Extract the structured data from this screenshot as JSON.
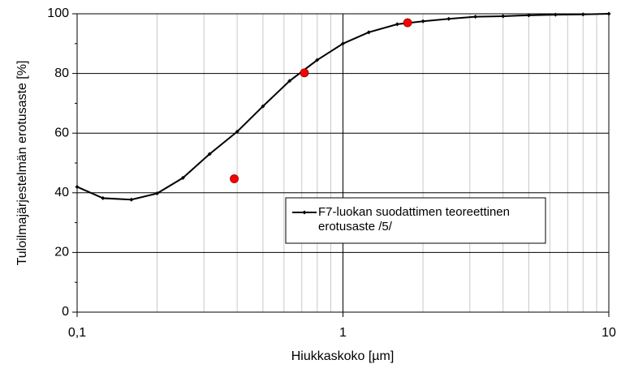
{
  "chart_data": {
    "type": "line",
    "x_label": "Hiukkaskoko [µm]",
    "y_label": "Tuloilmajärjestelmän erotusaste [%]",
    "xscale": "log",
    "xlim": [
      0.1,
      10
    ],
    "xticks": [
      {
        "value": 0.1,
        "label": "0,1"
      },
      1,
      10
    ],
    "xminorticks": [
      0.2,
      0.3,
      0.4,
      0.5,
      0.6,
      0.7,
      0.8,
      0.9,
      2,
      3,
      4,
      5,
      6,
      7,
      8,
      9
    ],
    "ylim": [
      0,
      100
    ],
    "yticks": [
      0,
      20,
      40,
      60,
      80,
      100
    ],
    "yminorticks": [
      10,
      30,
      50,
      70,
      90
    ],
    "grid": true,
    "legend": "center-right",
    "series": [
      {
        "name": "F7-luokan suodattimen teoreettinen erotusaste /5/",
        "color": "#000000",
        "marker": "diamond",
        "x": [
          0.1,
          0.125,
          0.16,
          0.2,
          0.25,
          0.315,
          0.4,
          0.5,
          0.63,
          0.8,
          1.0,
          1.25,
          1.6,
          2.0,
          2.5,
          3.15,
          4,
          5,
          6.3,
          8,
          10
        ],
        "values": [
          42,
          38.2,
          37.7,
          39.8,
          45,
          53,
          60.5,
          69,
          77.5,
          84.5,
          90,
          93.8,
          96.5,
          97.5,
          98.3,
          99,
          99.2,
          99.5,
          99.7,
          99.8,
          100
        ]
      },
      {
        "type": "scatter",
        "color": "#ff0000",
        "marker": "circle",
        "x": [
          0.39,
          0.716,
          1.75
        ],
        "values": [
          44.7,
          80.2,
          97
        ]
      }
    ]
  }
}
